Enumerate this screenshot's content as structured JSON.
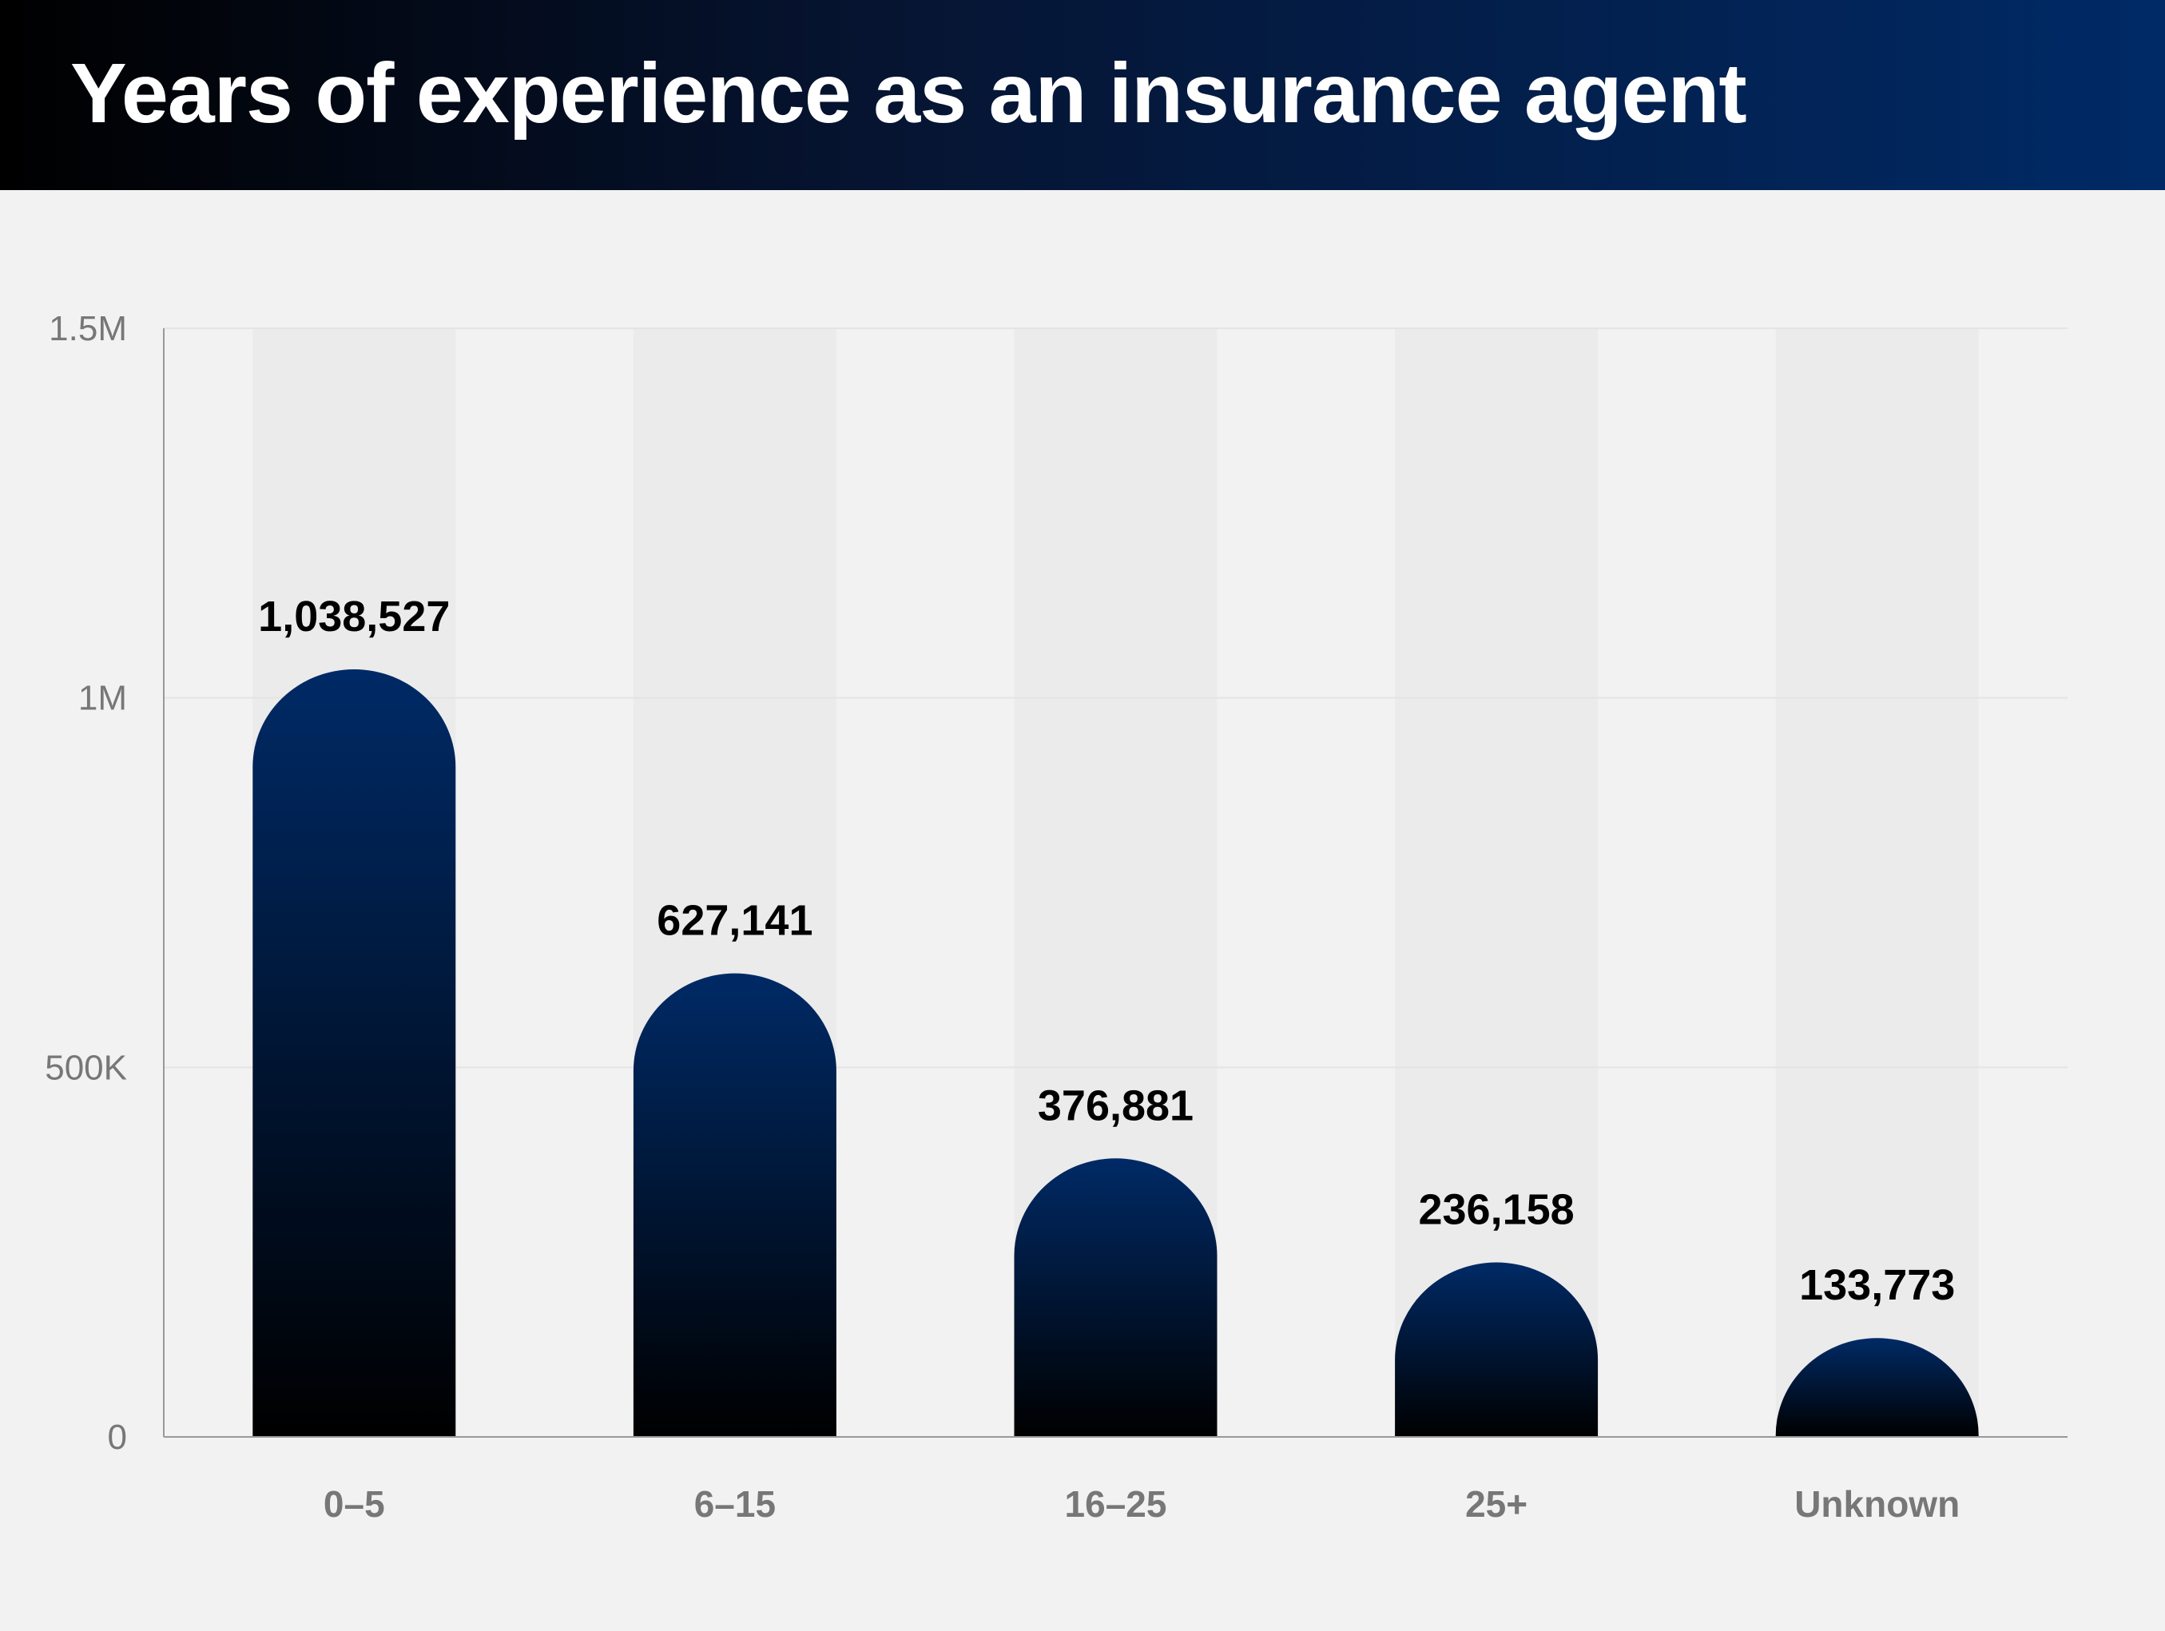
{
  "header": {
    "title": "Years of experience as an insurance agent"
  },
  "chart_data": {
    "type": "bar",
    "title": "Years of experience as an insurance agent",
    "xlabel": "",
    "ylabel": "",
    "categories": [
      "0–5",
      "6–15",
      "16–25",
      "25+",
      "Unknown"
    ],
    "values": [
      1038527,
      627141,
      376881,
      236158,
      133773
    ],
    "value_labels": [
      "1,038,527",
      "627,141",
      "376,881",
      "236,158",
      "133,773"
    ],
    "ylim": [
      0,
      1500000
    ],
    "yticks": [
      0,
      500000,
      1000000,
      1500000
    ],
    "ytick_labels": [
      "0",
      "500K",
      "1M",
      "1.5M"
    ],
    "grid": true,
    "legend": "none",
    "colors": {
      "bar_top": "#002a66",
      "bar_bottom": "#000000",
      "column_band": "#ebebeb",
      "gridline": "#e4e4e4",
      "axis": "#999999"
    }
  }
}
